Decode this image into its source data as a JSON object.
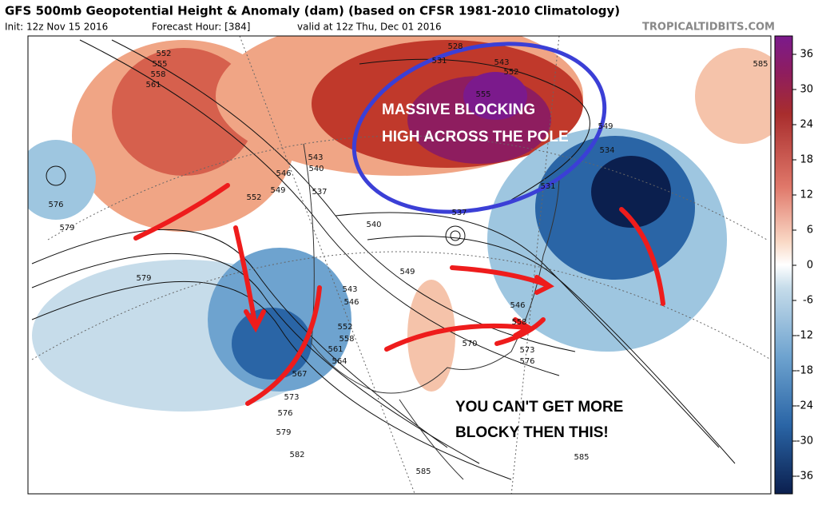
{
  "header": {
    "title": "GFS 500mb Geopotential Height & Anomaly (dam) (based on CFSR 1981-2010 Climatology)",
    "init": "Init: 12z Nov 15 2016",
    "forecast_hour": "Forecast Hour: [384]",
    "valid": "valid at 12z Thu, Dec 01 2016",
    "watermark": "TROPICALTIDBITS.COM"
  },
  "annotations": {
    "blocking": "MASSIVE BLOCKING",
    "pole": "HIGH ACROSS THE POLE",
    "blocky_1": "YOU CAN'T GET MORE",
    "blocky_2": "BLOCKY THEN THIS!"
  },
  "colorbar": {
    "ticks": [
      36,
      30,
      24,
      18,
      12,
      6,
      0,
      -6,
      -12,
      -18,
      -24,
      -30,
      -36
    ]
  },
  "contour_labels": [
    552,
    555,
    558,
    561,
    528,
    531,
    543,
    552,
    555,
    549,
    534,
    531,
    537,
    537,
    543,
    540,
    546,
    549,
    552,
    576,
    579,
    579,
    585,
    540,
    549,
    543,
    546,
    552,
    558,
    561,
    564,
    567,
    573,
    576,
    579,
    582,
    585,
    585,
    570,
    573,
    576,
    546,
    558
  ]
}
